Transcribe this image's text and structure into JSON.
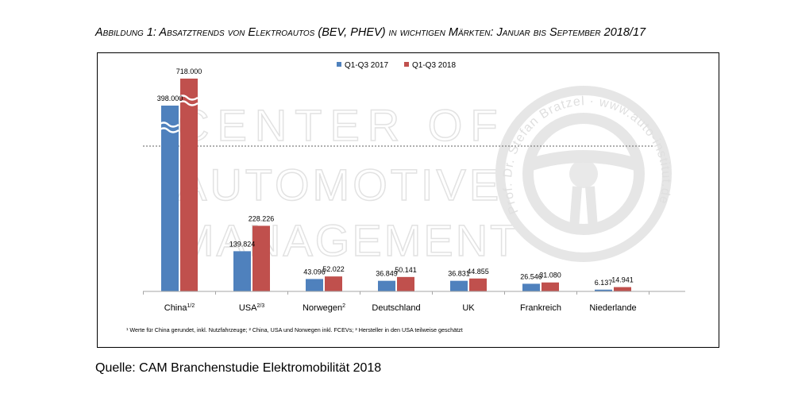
{
  "caption": "Abbildung 1: Absatztrends von Elektroautos (BEV, PHEV) in wichtigen Märkten: Januar bis September 2018/17",
  "source": "Quelle: CAM Branchenstudie Elektromobilität 2018",
  "watermark": {
    "lines": [
      "CENTER OF",
      "AUTOMOTIVE",
      "MANAGEMENT"
    ],
    "circle_text": "Prof. Dr. Stefan Bratzel · www.auto-institut.de"
  },
  "chart_data": {
    "type": "bar",
    "title": "Absatztrends von Elektroautos (BEV, PHEV) in wichtigen Märkten: Januar bis September 2018/17",
    "categories": [
      "China",
      "USA",
      "Norwegen",
      "Deutschland",
      "UK",
      "Frankreich",
      "Niederlande"
    ],
    "category_superscripts": [
      "1/2",
      "2/3",
      "2",
      "",
      "",
      "",
      ""
    ],
    "series": [
      {
        "name": "Q1-Q3 2017",
        "color": "#4f81bd",
        "values": [
          398000,
          139824,
          43096,
          36849,
          36831,
          26546,
          6137
        ],
        "labels": [
          "398.000",
          "139.824",
          "43.096",
          "36.849",
          "36.831",
          "26.546",
          "6.137"
        ]
      },
      {
        "name": "Q1-Q3 2018",
        "color": "#c0504d",
        "values": [
          718000,
          228226,
          52022,
          50141,
          44855,
          31080,
          14941
        ],
        "labels": [
          "718.000",
          "228.226",
          "52.022",
          "50.141",
          "44.855",
          "31.080",
          "14.941"
        ]
      }
    ],
    "axis_break": true,
    "ylim": [
      0,
      300000
    ],
    "footnote": "¹ Werte für China gerundet, inkl. Nutzfahrzeuge; ² China, USA und Norwegen inkl. FCEVs; ³ Hersteller in den USA teilweise geschätzt",
    "legend_position": "top-center",
    "grid": false
  }
}
